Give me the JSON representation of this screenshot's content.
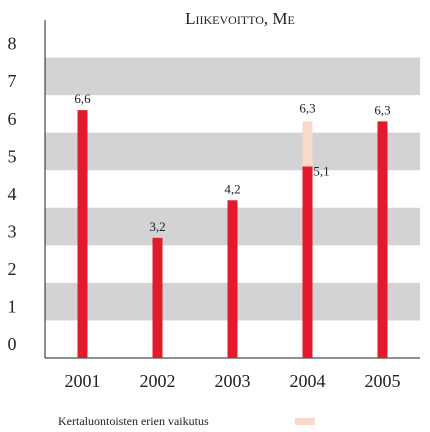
{
  "chart_data": {
    "type": "bar",
    "stacked": true,
    "title": "Liikevoitto, Me",
    "categories": [
      "2001",
      "2002",
      "2003",
      "2004",
      "2005"
    ],
    "series": [
      {
        "color": "#e3192d",
        "values": [
          6.6,
          3.2,
          4.2,
          5.1,
          6.3
        ],
        "value_labels": [
          "6,6",
          "3,2",
          "4,2",
          "5,1",
          "6,3"
        ]
      },
      {
        "name": "Kertaluontoisten erien vaikutus",
        "color": "#fad9cb",
        "values": [
          null,
          null,
          null,
          1.2,
          null
        ]
      }
    ],
    "annotations": [
      {
        "text": "6,3",
        "x": "2004",
        "y": 6.3
      }
    ],
    "ylim": [
      0,
      9
    ],
    "yticks": [
      0,
      1,
      2,
      3,
      4,
      5,
      6,
      7,
      8
    ],
    "grid": "bands",
    "legend": "bottom"
  }
}
